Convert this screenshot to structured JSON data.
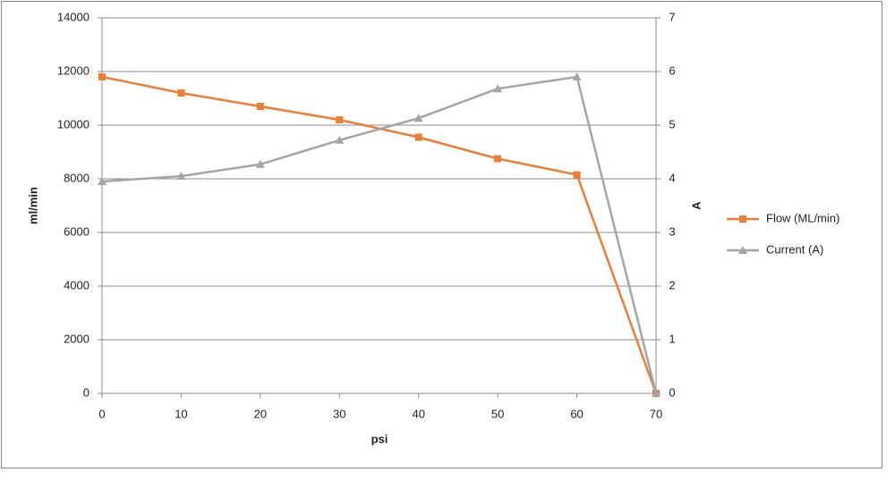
{
  "chart_data": {
    "type": "line",
    "x": [
      0,
      10,
      20,
      30,
      40,
      50,
      60,
      70
    ],
    "x_label": "psi",
    "y_label": "ml/min",
    "y2_label": "A",
    "xlim": [
      0,
      70
    ],
    "xticks": [
      0,
      10,
      20,
      30,
      40,
      50,
      60,
      70
    ],
    "ylim": [
      0,
      14000
    ],
    "yticks": [
      0,
      2000,
      4000,
      6000,
      8000,
      10000,
      12000,
      14000
    ],
    "y2lim": [
      0,
      7
    ],
    "y2ticks": [
      0,
      1,
      2,
      3,
      4,
      5,
      6,
      7
    ],
    "grid": true,
    "legend": "right",
    "series": [
      {
        "name": "Flow (ML/min)",
        "color": "#ed7d31",
        "marker": "square",
        "values": [
          11800,
          11200,
          10700,
          10200,
          9550,
          8750,
          8150,
          0
        ]
      },
      {
        "name": "Current (A)",
        "color": "#a5a5a5",
        "marker": "triangle",
        "axis": "y2",
        "values": [
          3.95,
          4.05,
          4.27,
          4.72,
          5.13,
          5.68,
          5.9,
          0
        ]
      }
    ]
  }
}
